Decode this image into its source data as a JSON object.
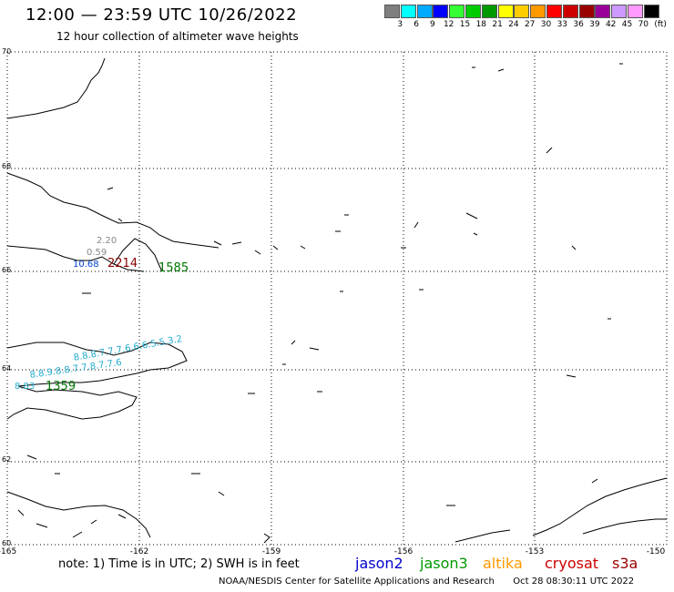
{
  "header": {
    "title": "12:00 — 23:59 UTC 10/26/2022",
    "subtitle": "12 hour collection of altimeter wave heights"
  },
  "color_scale": {
    "levels": [
      "3",
      "6",
      "9",
      "12",
      "15",
      "18",
      "21",
      "24",
      "27",
      "30",
      "33",
      "36",
      "39",
      "42",
      "45",
      "70"
    ],
    "unit": "(ft)",
    "colors": [
      "#7f7f7f",
      "#00ffff",
      "#00aaff",
      "#0000ff",
      "#33ff33",
      "#00cc00",
      "#009900",
      "#ffff00",
      "#ffcc00",
      "#ff9900",
      "#ff0000",
      "#cc0000",
      "#990000",
      "#990099",
      "#cc99ff",
      "#ff99ff",
      "#000000"
    ]
  },
  "axes": {
    "lat_labels": [
      "70",
      "68",
      "66",
      "64",
      "62",
      "60"
    ],
    "lon_labels": [
      "-165",
      "-162",
      "-159",
      "-156",
      "-153",
      "-150"
    ]
  },
  "observations": {
    "gray": [
      {
        "text": "2.20",
        "color": "#888888"
      },
      {
        "text": "0.59",
        "color": "#888888"
      }
    ],
    "blue_label": {
      "text": "10.68",
      "color": "#0044cc"
    },
    "red_label": {
      "text": "2214",
      "color": "#880000"
    },
    "green_label_1": {
      "text": "1585",
      "color": "#007700"
    },
    "cyan_track_1": {
      "text": "8.8.8.7.7.7.6.6.6.5.5.3.2",
      "color": "#22aacc"
    },
    "cyan_track_2": {
      "text": "8.8.9.8.8.7.7.8.7.7.6",
      "color": "#22aacc"
    },
    "cyan_label_2": {
      "text": "8.83",
      "color": "#22aacc"
    },
    "green_label_2": {
      "text": "1359",
      "color": "#007700"
    }
  },
  "footer": {
    "note": "note: 1) Time is in UTC; 2) SWH is in feet",
    "legend": [
      {
        "label": "jason2",
        "color": "#0000cc"
      },
      {
        "label": "jason3",
        "color": "#009900"
      },
      {
        "label": "altika",
        "color": "#ff9900"
      },
      {
        "label": "cryosat",
        "color": "#cc0000"
      },
      {
        "label": "s3a",
        "color": "#990000"
      }
    ],
    "credit": "NOAA/NESDIS Center for Satellite Applications and Research",
    "timestamp": "Oct 28 08:30:11 UTC 2022"
  }
}
